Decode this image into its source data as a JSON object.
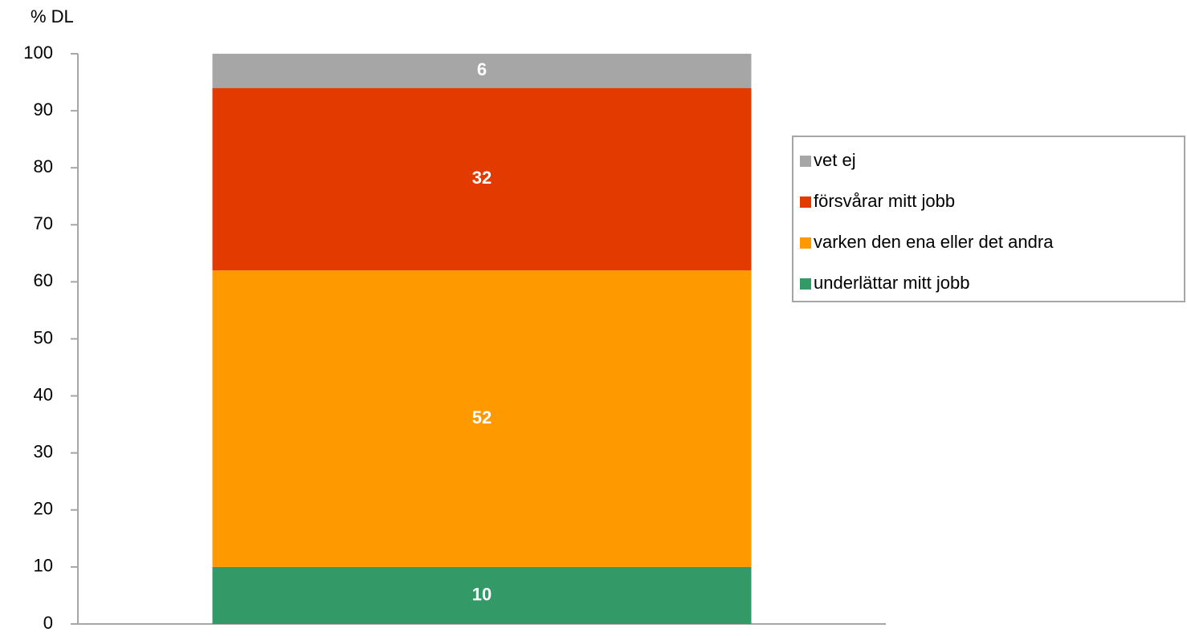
{
  "chart_data": {
    "type": "stacked_bar",
    "y_label": "% DL",
    "categories": [
      null
    ],
    "series": [
      {
        "name": "underlättar mitt jobb",
        "color": "#339966",
        "values": [
          10
        ]
      },
      {
        "name": "varken den ena eller det andra",
        "color": "#ff9900",
        "values": [
          52
        ]
      },
      {
        "name": "försvårar mitt jobb",
        "color": "#e33a00",
        "values": [
          32
        ]
      },
      {
        "name": "vet ej",
        "color": "#a6a6a6",
        "values": [
          6
        ]
      }
    ],
    "ylim": [
      0,
      100
    ],
    "yticks": [
      0,
      10,
      20,
      30,
      40,
      50,
      60,
      70,
      80,
      90,
      100
    ],
    "grid": false,
    "legend": "right"
  }
}
